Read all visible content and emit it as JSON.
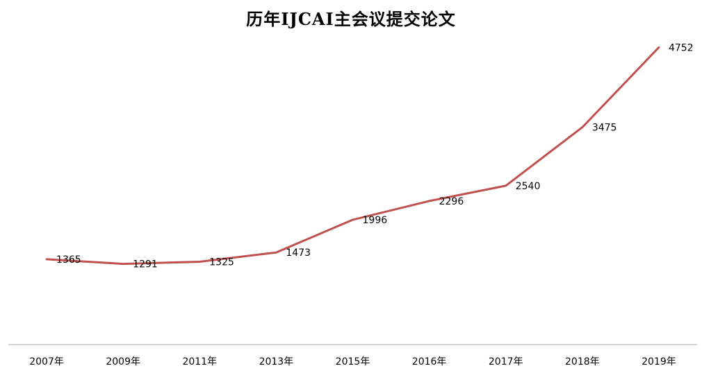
{
  "chart_data": {
    "type": "line",
    "title": "历年IJCAI主会议提交论文",
    "categories": [
      "2007年",
      "2009年",
      "2011年",
      "2013年",
      "2015年",
      "2016年",
      "2017年",
      "2018年",
      "2019年"
    ],
    "series": [
      {
        "values": [
          1365,
          1291,
          1325,
          1473,
          1996,
          2296,
          2540,
          3475,
          4752
        ],
        "color": "#C0504D"
      }
    ],
    "data_labels": [
      "1365",
      "1291",
      "1325",
      "1473",
      "1996",
      "2296",
      "2540",
      "3475",
      "4752"
    ],
    "grid": false,
    "legend": "none",
    "xlabel": "",
    "ylabel": "",
    "ylim": [
      0,
      5000
    ],
    "axis_color": "#A6A6A6"
  }
}
